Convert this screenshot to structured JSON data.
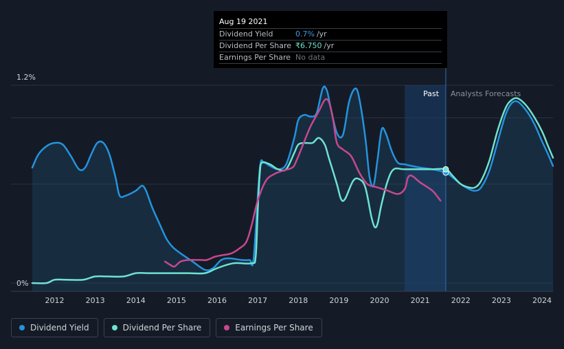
{
  "tooltip": {
    "date": "Aug 19 2021",
    "rows": [
      {
        "label": "Dividend Yield",
        "value": "0.7%",
        "unit": "/yr"
      },
      {
        "label": "Dividend Per Share",
        "value": "₹6.750",
        "unit": "/yr"
      },
      {
        "label": "Earnings Per Share",
        "value": "No data",
        "unit": ""
      }
    ]
  },
  "regions": {
    "past_label": "Past",
    "forecast_label": "Analysts Forecasts"
  },
  "legend": [
    {
      "label": "Dividend Yield",
      "color": "#2394df"
    },
    {
      "label": "Dividend Per Share",
      "color": "#6fe3d0"
    },
    {
      "label": "Earnings Per Share",
      "color": "#c8488f"
    }
  ],
  "chart_data": {
    "type": "line",
    "y_axis": {
      "min_label": "0%",
      "max_label": "1.2%",
      "ylim": [
        0,
        1.2
      ]
    },
    "x_ticks": [
      "2012",
      "2013",
      "2014",
      "2015",
      "2016",
      "2017",
      "2018",
      "2019",
      "2020",
      "2021",
      "2022",
      "2023",
      "2024"
    ],
    "xlim": [
      2011.45,
      2024.27
    ],
    "past_end": 2021.63,
    "highlight_start": 2020.62,
    "grid": true,
    "series": [
      {
        "name": "Dividend Yield",
        "color": "#2394df",
        "area": true,
        "points": [
          [
            2011.45,
            0.7
          ],
          [
            2011.6,
            0.78
          ],
          [
            2011.8,
            0.83
          ],
          [
            2012.0,
            0.85
          ],
          [
            2012.2,
            0.84
          ],
          [
            2012.4,
            0.77
          ],
          [
            2012.6,
            0.69
          ],
          [
            2012.75,
            0.7
          ],
          [
            2012.9,
            0.78
          ],
          [
            2013.05,
            0.85
          ],
          [
            2013.2,
            0.85
          ],
          [
            2013.35,
            0.78
          ],
          [
            2013.5,
            0.64
          ],
          [
            2013.6,
            0.53
          ],
          [
            2013.75,
            0.53
          ],
          [
            2014.0,
            0.56
          ],
          [
            2014.15,
            0.59
          ],
          [
            2014.25,
            0.56
          ],
          [
            2014.4,
            0.46
          ],
          [
            2014.6,
            0.35
          ],
          [
            2014.75,
            0.27
          ],
          [
            2014.9,
            0.22
          ],
          [
            2015.1,
            0.18
          ],
          [
            2015.4,
            0.13
          ],
          [
            2015.7,
            0.08
          ],
          [
            2015.9,
            0.09
          ],
          [
            2016.1,
            0.14
          ],
          [
            2016.3,
            0.15
          ],
          [
            2016.6,
            0.14
          ],
          [
            2016.8,
            0.14
          ],
          [
            2016.9,
            0.15
          ],
          [
            2017.05,
            0.69
          ],
          [
            2017.15,
            0.73
          ],
          [
            2017.3,
            0.71
          ],
          [
            2017.5,
            0.69
          ],
          [
            2017.7,
            0.72
          ],
          [
            2017.9,
            0.88
          ],
          [
            2018.0,
            0.99
          ],
          [
            2018.15,
            1.02
          ],
          [
            2018.3,
            1.01
          ],
          [
            2018.45,
            1.03
          ],
          [
            2018.6,
            1.18
          ],
          [
            2018.7,
            1.17
          ],
          [
            2018.8,
            1.06
          ],
          [
            2018.95,
            0.91
          ],
          [
            2019.1,
            0.9
          ],
          [
            2019.25,
            1.1
          ],
          [
            2019.4,
            1.18
          ],
          [
            2019.5,
            1.12
          ],
          [
            2019.65,
            0.88
          ],
          [
            2019.75,
            0.65
          ],
          [
            2019.85,
            0.59
          ],
          [
            2019.95,
            0.75
          ],
          [
            2020.05,
            0.93
          ],
          [
            2020.15,
            0.91
          ],
          [
            2020.3,
            0.8
          ],
          [
            2020.45,
            0.73
          ],
          [
            2020.62,
            0.72
          ],
          [
            2020.8,
            0.71
          ],
          [
            2021.0,
            0.7
          ],
          [
            2021.3,
            0.69
          ],
          [
            2021.63,
            0.67
          ],
          [
            2021.8,
            0.64
          ],
          [
            2022.0,
            0.6
          ],
          [
            2022.2,
            0.57
          ],
          [
            2022.35,
            0.56
          ],
          [
            2022.5,
            0.58
          ],
          [
            2022.7,
            0.68
          ],
          [
            2022.9,
            0.85
          ],
          [
            2023.1,
            1.02
          ],
          [
            2023.25,
            1.09
          ],
          [
            2023.4,
            1.1
          ],
          [
            2023.6,
            1.05
          ],
          [
            2023.8,
            0.97
          ],
          [
            2024.0,
            0.86
          ],
          [
            2024.15,
            0.78
          ],
          [
            2024.27,
            0.71
          ]
        ]
      },
      {
        "name": "Dividend Per Share",
        "color": "#6fe3d0",
        "area": false,
        "points": [
          [
            2011.45,
            0.0
          ],
          [
            2011.8,
            0.0
          ],
          [
            2012.0,
            0.02
          ],
          [
            2012.3,
            0.02
          ],
          [
            2012.7,
            0.02
          ],
          [
            2013.0,
            0.04
          ],
          [
            2013.3,
            0.04
          ],
          [
            2013.7,
            0.04
          ],
          [
            2014.0,
            0.06
          ],
          [
            2014.3,
            0.06
          ],
          [
            2014.7,
            0.06
          ],
          [
            2015.0,
            0.06
          ],
          [
            2015.3,
            0.06
          ],
          [
            2015.7,
            0.06
          ],
          [
            2016.0,
            0.09
          ],
          [
            2016.4,
            0.12
          ],
          [
            2016.85,
            0.12
          ],
          [
            2016.95,
            0.16
          ],
          [
            2017.0,
            0.44
          ],
          [
            2017.05,
            0.66
          ],
          [
            2017.1,
            0.73
          ],
          [
            2017.3,
            0.72
          ],
          [
            2017.5,
            0.69
          ],
          [
            2017.7,
            0.69
          ],
          [
            2017.9,
            0.79
          ],
          [
            2018.0,
            0.84
          ],
          [
            2018.15,
            0.85
          ],
          [
            2018.35,
            0.85
          ],
          [
            2018.5,
            0.88
          ],
          [
            2018.65,
            0.84
          ],
          [
            2018.75,
            0.76
          ],
          [
            2018.95,
            0.6
          ],
          [
            2019.05,
            0.51
          ],
          [
            2019.15,
            0.51
          ],
          [
            2019.35,
            0.62
          ],
          [
            2019.5,
            0.63
          ],
          [
            2019.65,
            0.58
          ],
          [
            2019.8,
            0.4
          ],
          [
            2019.88,
            0.34
          ],
          [
            2019.95,
            0.36
          ],
          [
            2020.05,
            0.48
          ],
          [
            2020.2,
            0.62
          ],
          [
            2020.35,
            0.69
          ],
          [
            2020.6,
            0.69
          ],
          [
            2021.0,
            0.69
          ],
          [
            2021.3,
            0.69
          ],
          [
            2021.63,
            0.69
          ],
          [
            2021.8,
            0.65
          ],
          [
            2022.0,
            0.6
          ],
          [
            2022.2,
            0.58
          ],
          [
            2022.35,
            0.58
          ],
          [
            2022.5,
            0.62
          ],
          [
            2022.7,
            0.74
          ],
          [
            2022.9,
            0.92
          ],
          [
            2023.1,
            1.06
          ],
          [
            2023.25,
            1.11
          ],
          [
            2023.4,
            1.12
          ],
          [
            2023.6,
            1.08
          ],
          [
            2023.8,
            1.01
          ],
          [
            2024.0,
            0.92
          ],
          [
            2024.15,
            0.83
          ],
          [
            2024.27,
            0.76
          ]
        ]
      },
      {
        "name": "Earnings Per Share",
        "color": "#c8488f",
        "area": false,
        "points": [
          [
            2014.72,
            0.13
          ],
          [
            2014.85,
            0.11
          ],
          [
            2014.95,
            0.1
          ],
          [
            2015.1,
            0.13
          ],
          [
            2015.3,
            0.14
          ],
          [
            2015.6,
            0.14
          ],
          [
            2015.75,
            0.14
          ],
          [
            2015.95,
            0.16
          ],
          [
            2016.15,
            0.17
          ],
          [
            2016.35,
            0.18
          ],
          [
            2016.55,
            0.21
          ],
          [
            2016.72,
            0.25
          ],
          [
            2016.85,
            0.35
          ],
          [
            2017.0,
            0.5
          ],
          [
            2017.2,
            0.62
          ],
          [
            2017.4,
            0.66
          ],
          [
            2017.6,
            0.68
          ],
          [
            2017.85,
            0.7
          ],
          [
            2017.95,
            0.74
          ],
          [
            2018.1,
            0.83
          ],
          [
            2018.3,
            0.95
          ],
          [
            2018.5,
            1.04
          ],
          [
            2018.65,
            1.11
          ],
          [
            2018.75,
            1.1
          ],
          [
            2018.85,
            1.0
          ],
          [
            2018.95,
            0.85
          ],
          [
            2019.1,
            0.81
          ],
          [
            2019.3,
            0.77
          ],
          [
            2019.5,
            0.67
          ],
          [
            2019.7,
            0.6
          ],
          [
            2019.95,
            0.58
          ],
          [
            2020.2,
            0.56
          ],
          [
            2020.45,
            0.54
          ],
          [
            2020.62,
            0.57
          ],
          [
            2020.7,
            0.64
          ],
          [
            2020.8,
            0.65
          ],
          [
            2021.0,
            0.61
          ],
          [
            2021.3,
            0.56
          ],
          [
            2021.5,
            0.5
          ]
        ]
      }
    ]
  }
}
